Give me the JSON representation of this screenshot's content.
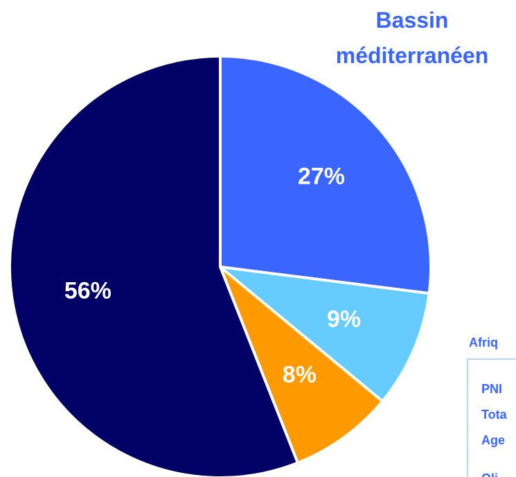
{
  "chart_data": {
    "type": "pie",
    "title": [
      "Bassin",
      "méditerranéen"
    ],
    "values": [
      27,
      9,
      8,
      56
    ],
    "value_labels": [
      "27%",
      "9%",
      "8%",
      "56%"
    ],
    "colors": [
      "#3a66ff",
      "#66ccff",
      "#ff9900",
      "#000066"
    ]
  },
  "side_panel": {
    "heading": "Afriq",
    "rows": [
      "PNI",
      "Tota",
      "Age",
      "Oli"
    ]
  }
}
